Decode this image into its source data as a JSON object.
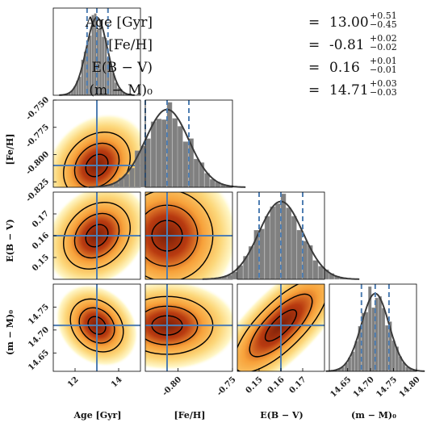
{
  "chart_data": {
    "type": "corner",
    "parameters": [
      {
        "name": "Age",
        "unit": "[Gyr]",
        "axis_label": "Age [Gyr]",
        "median": 13.0,
        "err_plus": 0.51,
        "err_minus": 0.45,
        "range": [
          11.0,
          15.0
        ],
        "ticks": [
          "12",
          "14"
        ]
      },
      {
        "name": "[Fe/H]",
        "unit": "",
        "axis_label": "[Fe/H]",
        "median": -0.81,
        "err_plus": 0.02,
        "err_minus": 0.02,
        "range": [
          -0.83,
          -0.75
        ],
        "ticks": [
          "-0.825",
          "-0.800",
          "-0.775",
          "-0.750"
        ]
      },
      {
        "name": "E(B − V)",
        "unit": "",
        "axis_label": "E(B − V)",
        "median": 0.16,
        "err_plus": 0.01,
        "err_minus": 0.01,
        "range": [
          0.14,
          0.18
        ],
        "ticks": [
          "0.15",
          "0.16",
          "0.17"
        ]
      },
      {
        "name": "(m − M)₀",
        "unit": "",
        "axis_label": "(m − M)₀",
        "median": 14.71,
        "err_plus": 0.03,
        "err_minus": 0.03,
        "range": [
          14.61,
          14.8
        ],
        "ticks": [
          "14.65",
          "14.70",
          "14.75",
          "14.80"
        ]
      }
    ],
    "bottom_ticks": [
      [
        "12",
        "14"
      ],
      [
        "-0.80",
        "-0.75"
      ],
      [
        "0.15",
        "0.16",
        "0.17"
      ],
      [
        "14.65",
        "14.70",
        "14.75",
        "14.80"
      ]
    ],
    "left_ticks": [
      [],
      [
        "-0.750",
        "-0.775",
        "-0.800",
        "-0.825"
      ],
      [
        "0.17",
        "0.16",
        "0.15"
      ],
      [
        "14.75",
        "14.70",
        "14.65"
      ]
    ],
    "quantile_lines": "16th, 50th, 84th percentiles",
    "grid": false
  },
  "summary": [
    {
      "label": "Age [Gyr]",
      "eq": "=",
      "value": "13.00",
      "plus": "+0.51",
      "minus": "−0.45"
    },
    {
      "label": "[Fe/H]",
      "eq": "=",
      "value": "-0.81",
      "plus": "+0.02",
      "minus": "−0.02"
    },
    {
      "label": "E(B − V)",
      "eq": "=",
      "value": "0.16",
      "plus": "+0.01",
      "minus": "−0.01"
    },
    {
      "label": "(m − M)₀",
      "eq": "=",
      "value": "14.71",
      "plus": "+0.03",
      "minus": "−0.03"
    }
  ],
  "colors": {
    "hist": "#808080",
    "hist_outline": "#9a9a9a",
    "fit": "#3a3a3a",
    "median_line": "#4f7eb2",
    "quantile_line": "#4f7eb2",
    "contour": "#000000",
    "density_low": "#fff7c8",
    "density_mid": "#f7a13a",
    "density_high": "#7a1f08"
  }
}
